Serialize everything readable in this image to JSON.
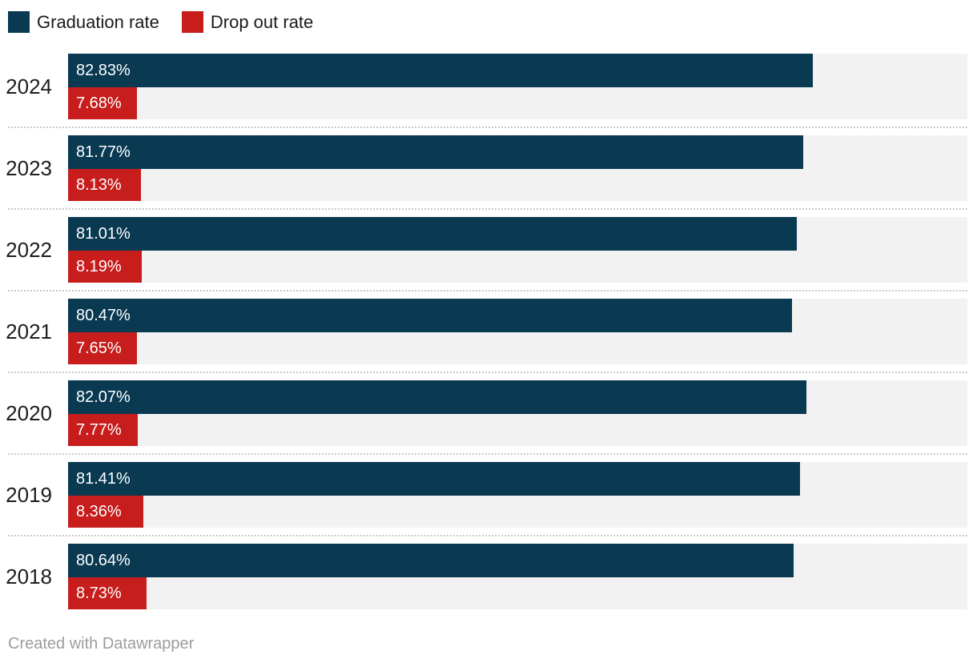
{
  "legend": {
    "position": "top-left",
    "items": [
      {
        "label": "Graduation rate",
        "color": "#0a3a52"
      },
      {
        "label": "Drop out rate",
        "color": "#c71e1d"
      }
    ]
  },
  "footer": {
    "credit": "Created with Datawrapper"
  },
  "colors": {
    "graduation_bar": "#0a3a52",
    "dropout_bar": "#c71e1d",
    "track_background": "#f2f2f2",
    "separator": "#c9c9c9",
    "value_label_text": "#ffffff",
    "year_label_text": "#1d1d1d",
    "footer_text": "#9c9c9c"
  },
  "chart_data": {
    "type": "bar",
    "orientation": "horizontal",
    "title": "",
    "xlabel": "",
    "ylabel": "",
    "xlim": [
      0,
      100
    ],
    "grid": false,
    "legend_position": "top-left",
    "value_suffix": "%",
    "categories": [
      "2024",
      "2023",
      "2022",
      "2021",
      "2020",
      "2019",
      "2018"
    ],
    "series": [
      {
        "name": "Graduation rate",
        "color": "#0a3a52",
        "values": [
          82.83,
          81.77,
          81.01,
          80.47,
          82.07,
          81.41,
          80.64
        ]
      },
      {
        "name": "Drop out rate",
        "color": "#c71e1d",
        "values": [
          7.68,
          8.13,
          8.19,
          7.65,
          7.77,
          8.36,
          8.73
        ]
      }
    ],
    "value_labels": {
      "Graduation rate": [
        "82.83%",
        "81.77%",
        "81.01%",
        "80.47%",
        "82.07%",
        "81.41%",
        "80.64%"
      ],
      "Drop out rate": [
        "7.68%",
        "8.13%",
        "8.19%",
        "7.65%",
        "7.77%",
        "8.36%",
        "8.73%"
      ]
    }
  }
}
